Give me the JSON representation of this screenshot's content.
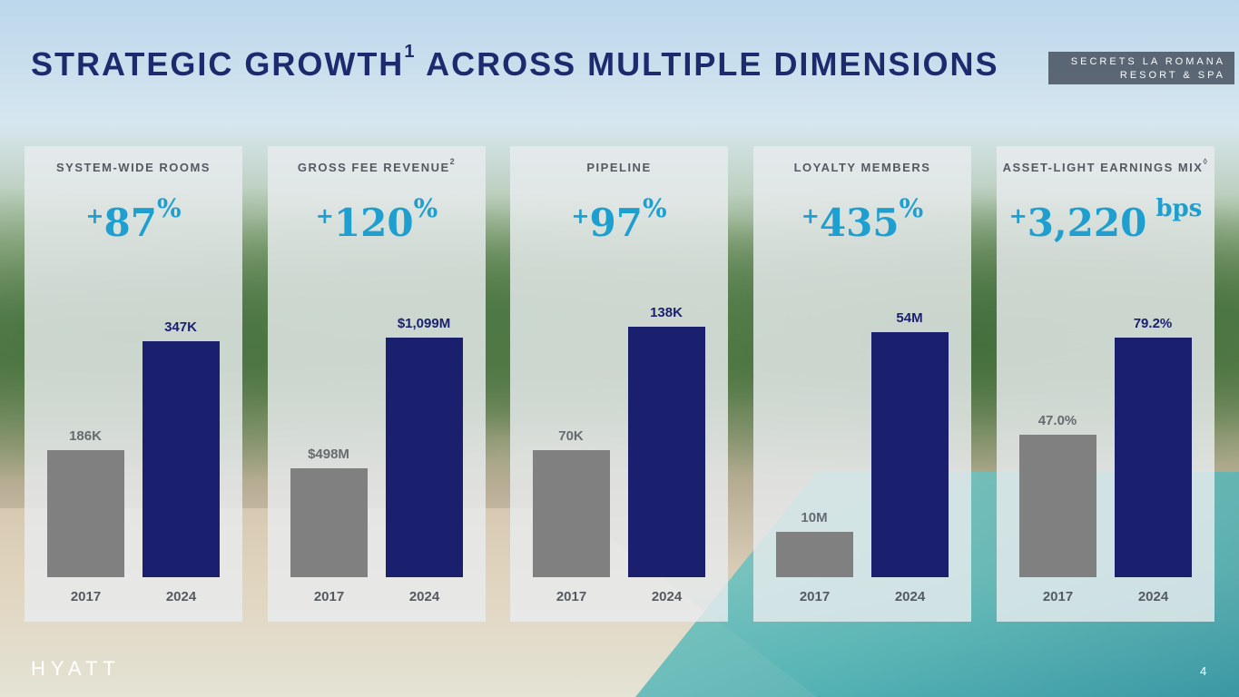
{
  "title": {
    "main": "STRATEGIC GROWTH",
    "footnote": "1",
    "rest": " ACROSS MULTIPLE DIMENSIONS"
  },
  "resort_tag": {
    "line1": "SECRETS LA ROMANA",
    "line2": "RESORT & SPA"
  },
  "logo": "HYATT",
  "page_number": "4",
  "colors": {
    "title": "#1e2a6e",
    "growth": "#1f9fcf",
    "bar_2017": "#808080",
    "bar_2024": "#1a1f6e"
  },
  "chart_data": [
    {
      "type": "bar",
      "title": "SYSTEM-WIDE ROOMS",
      "title_mark": "",
      "growth": {
        "plus": "+",
        "value": "87",
        "unit": "%"
      },
      "categories": [
        "2017",
        "2024"
      ],
      "values": [
        186,
        347
      ],
      "value_labels": [
        "186K",
        "347K"
      ],
      "ylim": [
        0,
        400
      ]
    },
    {
      "type": "bar",
      "title": "GROSS FEE REVENUE",
      "title_mark": "2",
      "growth": {
        "plus": "+",
        "value": "120",
        "unit": "%"
      },
      "categories": [
        "2017",
        "2024"
      ],
      "values": [
        498,
        1099
      ],
      "value_labels": [
        "$498M",
        "$1,099M"
      ],
      "ylim": [
        0,
        1250
      ]
    },
    {
      "type": "bar",
      "title": "PIPELINE",
      "title_mark": "",
      "growth": {
        "plus": "+",
        "value": "97",
        "unit": "%"
      },
      "categories": [
        "2017",
        "2024"
      ],
      "values": [
        70,
        138
      ],
      "value_labels": [
        "70K",
        "138K"
      ],
      "ylim": [
        0,
        150
      ]
    },
    {
      "type": "bar",
      "title": "LOYALTY MEMBERS",
      "title_mark": "",
      "growth": {
        "plus": "+",
        "value": "435",
        "unit": "%"
      },
      "categories": [
        "2017",
        "2024"
      ],
      "values": [
        10,
        54
      ],
      "value_labels": [
        "10M",
        "54M"
      ],
      "ylim": [
        0,
        60
      ]
    },
    {
      "type": "bar",
      "title": "ASSET-LIGHT EARNINGS MIX",
      "title_mark": "◊",
      "growth": {
        "plus": "+",
        "value": "3,220",
        "unit": "bps"
      },
      "categories": [
        "2017",
        "2024"
      ],
      "values": [
        47.0,
        79.2
      ],
      "value_labels": [
        "47.0%",
        "79.2%"
      ],
      "ylim": [
        0,
        90
      ]
    }
  ]
}
